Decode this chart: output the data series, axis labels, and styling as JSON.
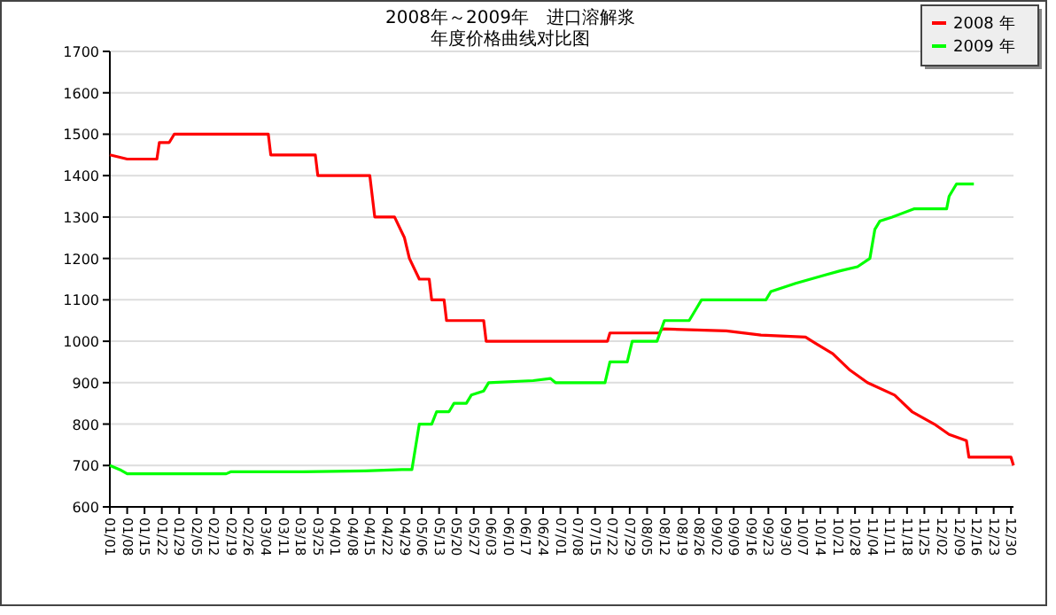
{
  "chart_data": {
    "type": "line",
    "title": "2008年～2009年　进口溶解浆",
    "subtitle": "年度价格曲线对比图",
    "ylim": [
      600,
      1700
    ],
    "yticks": [
      600,
      700,
      800,
      900,
      1000,
      1100,
      1200,
      1300,
      1400,
      1500,
      1600,
      1700
    ],
    "xlim": [
      "--01-01",
      "--12-31"
    ],
    "xticks": [
      {
        "value": "--01-01",
        "label": "01/01"
      },
      {
        "value": "--01-08",
        "label": "01/08"
      },
      {
        "value": "--01-15",
        "label": "01/15"
      },
      {
        "value": "--01-22",
        "label": "01/22"
      },
      {
        "value": "--01-29",
        "label": "01/29"
      },
      {
        "value": "--02-05",
        "label": "02/05"
      },
      {
        "value": "--02-12",
        "label": "02/12"
      },
      {
        "value": "--02-19",
        "label": "02/19"
      },
      {
        "value": "--02-26",
        "label": "02/26"
      },
      {
        "value": "--03-04",
        "label": "03/04"
      },
      {
        "value": "--03-11",
        "label": "03/11"
      },
      {
        "value": "--03-18",
        "label": "03/18"
      },
      {
        "value": "--03-25",
        "label": "03/25"
      },
      {
        "value": "--04-01",
        "label": "04/01"
      },
      {
        "value": "--04-08",
        "label": "04/08"
      },
      {
        "value": "--04-15",
        "label": "04/15"
      },
      {
        "value": "--04-22",
        "label": "04/22"
      },
      {
        "value": "--04-29",
        "label": "04/29"
      },
      {
        "value": "--05-06",
        "label": "05/06"
      },
      {
        "value": "--05-13",
        "label": "05/13"
      },
      {
        "value": "--05-20",
        "label": "05/20"
      },
      {
        "value": "--05-27",
        "label": "05/27"
      },
      {
        "value": "--06-03",
        "label": "06/03"
      },
      {
        "value": "--06-10",
        "label": "06/10"
      },
      {
        "value": "--06-17",
        "label": "06/17"
      },
      {
        "value": "--06-24",
        "label": "06/24"
      },
      {
        "value": "--07-01",
        "label": "07/01"
      },
      {
        "value": "--07-08",
        "label": "07/08"
      },
      {
        "value": "--07-15",
        "label": "07/15"
      },
      {
        "value": "--07-22",
        "label": "07/22"
      },
      {
        "value": "--07-29",
        "label": "07/29"
      },
      {
        "value": "--08-05",
        "label": "08/05"
      },
      {
        "value": "--08-12",
        "label": "08/12"
      },
      {
        "value": "--08-19",
        "label": "08/19"
      },
      {
        "value": "--08-26",
        "label": "08/26"
      },
      {
        "value": "--09-02",
        "label": "09/02"
      },
      {
        "value": "--09-09",
        "label": "09/09"
      },
      {
        "value": "--09-16",
        "label": "09/16"
      },
      {
        "value": "--09-23",
        "label": "09/23"
      },
      {
        "value": "--09-30",
        "label": "09/30"
      },
      {
        "value": "--10-07",
        "label": "10/07"
      },
      {
        "value": "--10-14",
        "label": "10/14"
      },
      {
        "value": "--10-21",
        "label": "10/21"
      },
      {
        "value": "--10-28",
        "label": "10/28"
      },
      {
        "value": "--11-04",
        "label": "11/04"
      },
      {
        "value": "--11-11",
        "label": "11/11"
      },
      {
        "value": "--11-18",
        "label": "11/18"
      },
      {
        "value": "--11-25",
        "label": "11/25"
      },
      {
        "value": "--12-02",
        "label": "12/02"
      },
      {
        "value": "--12-09",
        "label": "12/09"
      },
      {
        "value": "--12-16",
        "label": "12/16"
      },
      {
        "value": "--12-23",
        "label": "12/23"
      },
      {
        "value": "--12-30",
        "label": "12/30"
      }
    ],
    "grid": "y",
    "legend": "top right",
    "marker": "none",
    "line_style": "solid",
    "series": [
      {
        "name": "2008 年",
        "color": "#ff0000",
        "x": [
          "--01-01",
          "--01-08",
          "--01-20",
          "--01-21",
          "--01-25",
          "--01-27",
          "--03-05",
          "--03-06",
          "--03-24",
          "--03-25",
          "--04-15",
          "--04-17",
          "--04-25",
          "--04-29",
          "--05-01",
          "--05-05",
          "--05-09",
          "--05-10",
          "--05-15",
          "--05-16",
          "--05-31",
          "--06-01",
          "--07-20",
          "--07-21",
          "--08-10",
          "--08-11",
          "--09-06",
          "--09-20",
          "--10-08",
          "--10-12",
          "--10-19",
          "--10-26",
          "--11-02",
          "--11-13",
          "--11-20",
          "--11-29",
          "--12-05",
          "--12-12",
          "--12-13",
          "--12-30",
          "--12-31"
        ],
        "values": [
          1450,
          1440,
          1440,
          1480,
          1480,
          1500,
          1500,
          1450,
          1450,
          1400,
          1400,
          1300,
          1300,
          1250,
          1200,
          1150,
          1150,
          1100,
          1100,
          1050,
          1050,
          1000,
          1000,
          1020,
          1020,
          1030,
          1025,
          1015,
          1010,
          995,
          970,
          930,
          900,
          870,
          830,
          800,
          775,
          760,
          720,
          720,
          700
        ]
      },
      {
        "name": "2009 年",
        "color": "#00ff00",
        "x": [
          "--01-01",
          "--01-05",
          "--01-08",
          "--02-17",
          "--02-19",
          "--03-19",
          "--04-13",
          "--04-28",
          "--05-02",
          "--05-05",
          "--05-10",
          "--05-12",
          "--05-17",
          "--05-19",
          "--05-24",
          "--05-26",
          "--05-31",
          "--06-02",
          "--06-20",
          "--06-27",
          "--06-29",
          "--07-19",
          "--07-21",
          "--07-28",
          "--07-30",
          "--08-09",
          "--08-12",
          "--08-22",
          "--08-25",
          "--08-27",
          "--09-22",
          "--09-24",
          "--10-04",
          "--10-16",
          "--10-22",
          "--10-29",
          "--11-03",
          "--11-05",
          "--11-07",
          "--11-12",
          "--11-21",
          "--12-04",
          "--12-05",
          "--12-08",
          "--12-15"
        ],
        "values": [
          700,
          690,
          680,
          680,
          685,
          685,
          687,
          690,
          690,
          800,
          800,
          830,
          830,
          850,
          850,
          870,
          880,
          900,
          905,
          910,
          900,
          900,
          950,
          950,
          1000,
          1000,
          1050,
          1050,
          1080,
          1100,
          1100,
          1120,
          1140,
          1160,
          1170,
          1180,
          1200,
          1270,
          1290,
          1300,
          1320,
          1320,
          1350,
          1380,
          1380
        ]
      }
    ]
  }
}
